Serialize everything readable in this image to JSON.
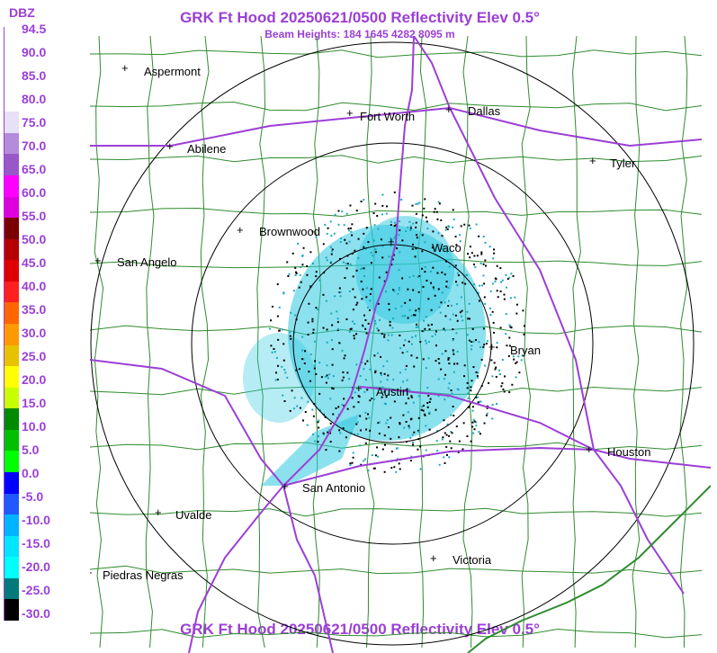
{
  "header": {
    "title": "GRK Ft Hood 20250621/0500 Reflectivity Elev 0.5°",
    "subtitle": "Beam Heights: 184 1645 4282 8095 m",
    "footer_title": "GRK Ft Hood 20250621/0500 Reflectivity Elev 0.5°"
  },
  "legend": {
    "title": "DBZ",
    "ticks": [
      "94.5",
      "90.0",
      "85.0",
      "80.0",
      "75.0",
      "70.0",
      "65.0",
      "60.0",
      "55.0",
      "50.0",
      "45.0",
      "40.0",
      "35.0",
      "30.0",
      "25.0",
      "20.0",
      "15.0",
      "10.0",
      "5.0",
      "0.0",
      "-5.0",
      "-10.0",
      "-15.0",
      "-20.0",
      "-25.0",
      "-30.0"
    ],
    "colors": [
      "#ffffff",
      "#ffffff",
      "#ffffff",
      "#ffffff",
      "#e8e0f4",
      "#b48cdc",
      "#9858c8",
      "#ff00ff",
      "#dd00dd",
      "#7a0000",
      "#b40000",
      "#e00000",
      "#ff2020",
      "#ff6600",
      "#ff9900",
      "#e6c200",
      "#ffff00",
      "#c8ff00",
      "#008a00",
      "#00c000",
      "#00ff00",
      "#0000ff",
      "#1e5aff",
      "#00b4ff",
      "#00e6ff",
      "#00ffff",
      "#007a7a",
      "#000000"
    ]
  },
  "map": {
    "cities": [
      "Aspermont",
      "Fort Worth",
      "Dallas",
      "Abilene",
      "Tyler",
      "Brownwood",
      "Waco",
      "San Angelo",
      "Bryan",
      "Austin",
      "Houston",
      "San Antonio",
      "Uvalde",
      "Victoria",
      "Piedras Negras"
    ],
    "colors": {
      "roads": "#9b3fd6",
      "counties": "#2e8b2e",
      "rings": "#000000",
      "echo": "#2ec8e0",
      "clutter": "#000000"
    }
  }
}
